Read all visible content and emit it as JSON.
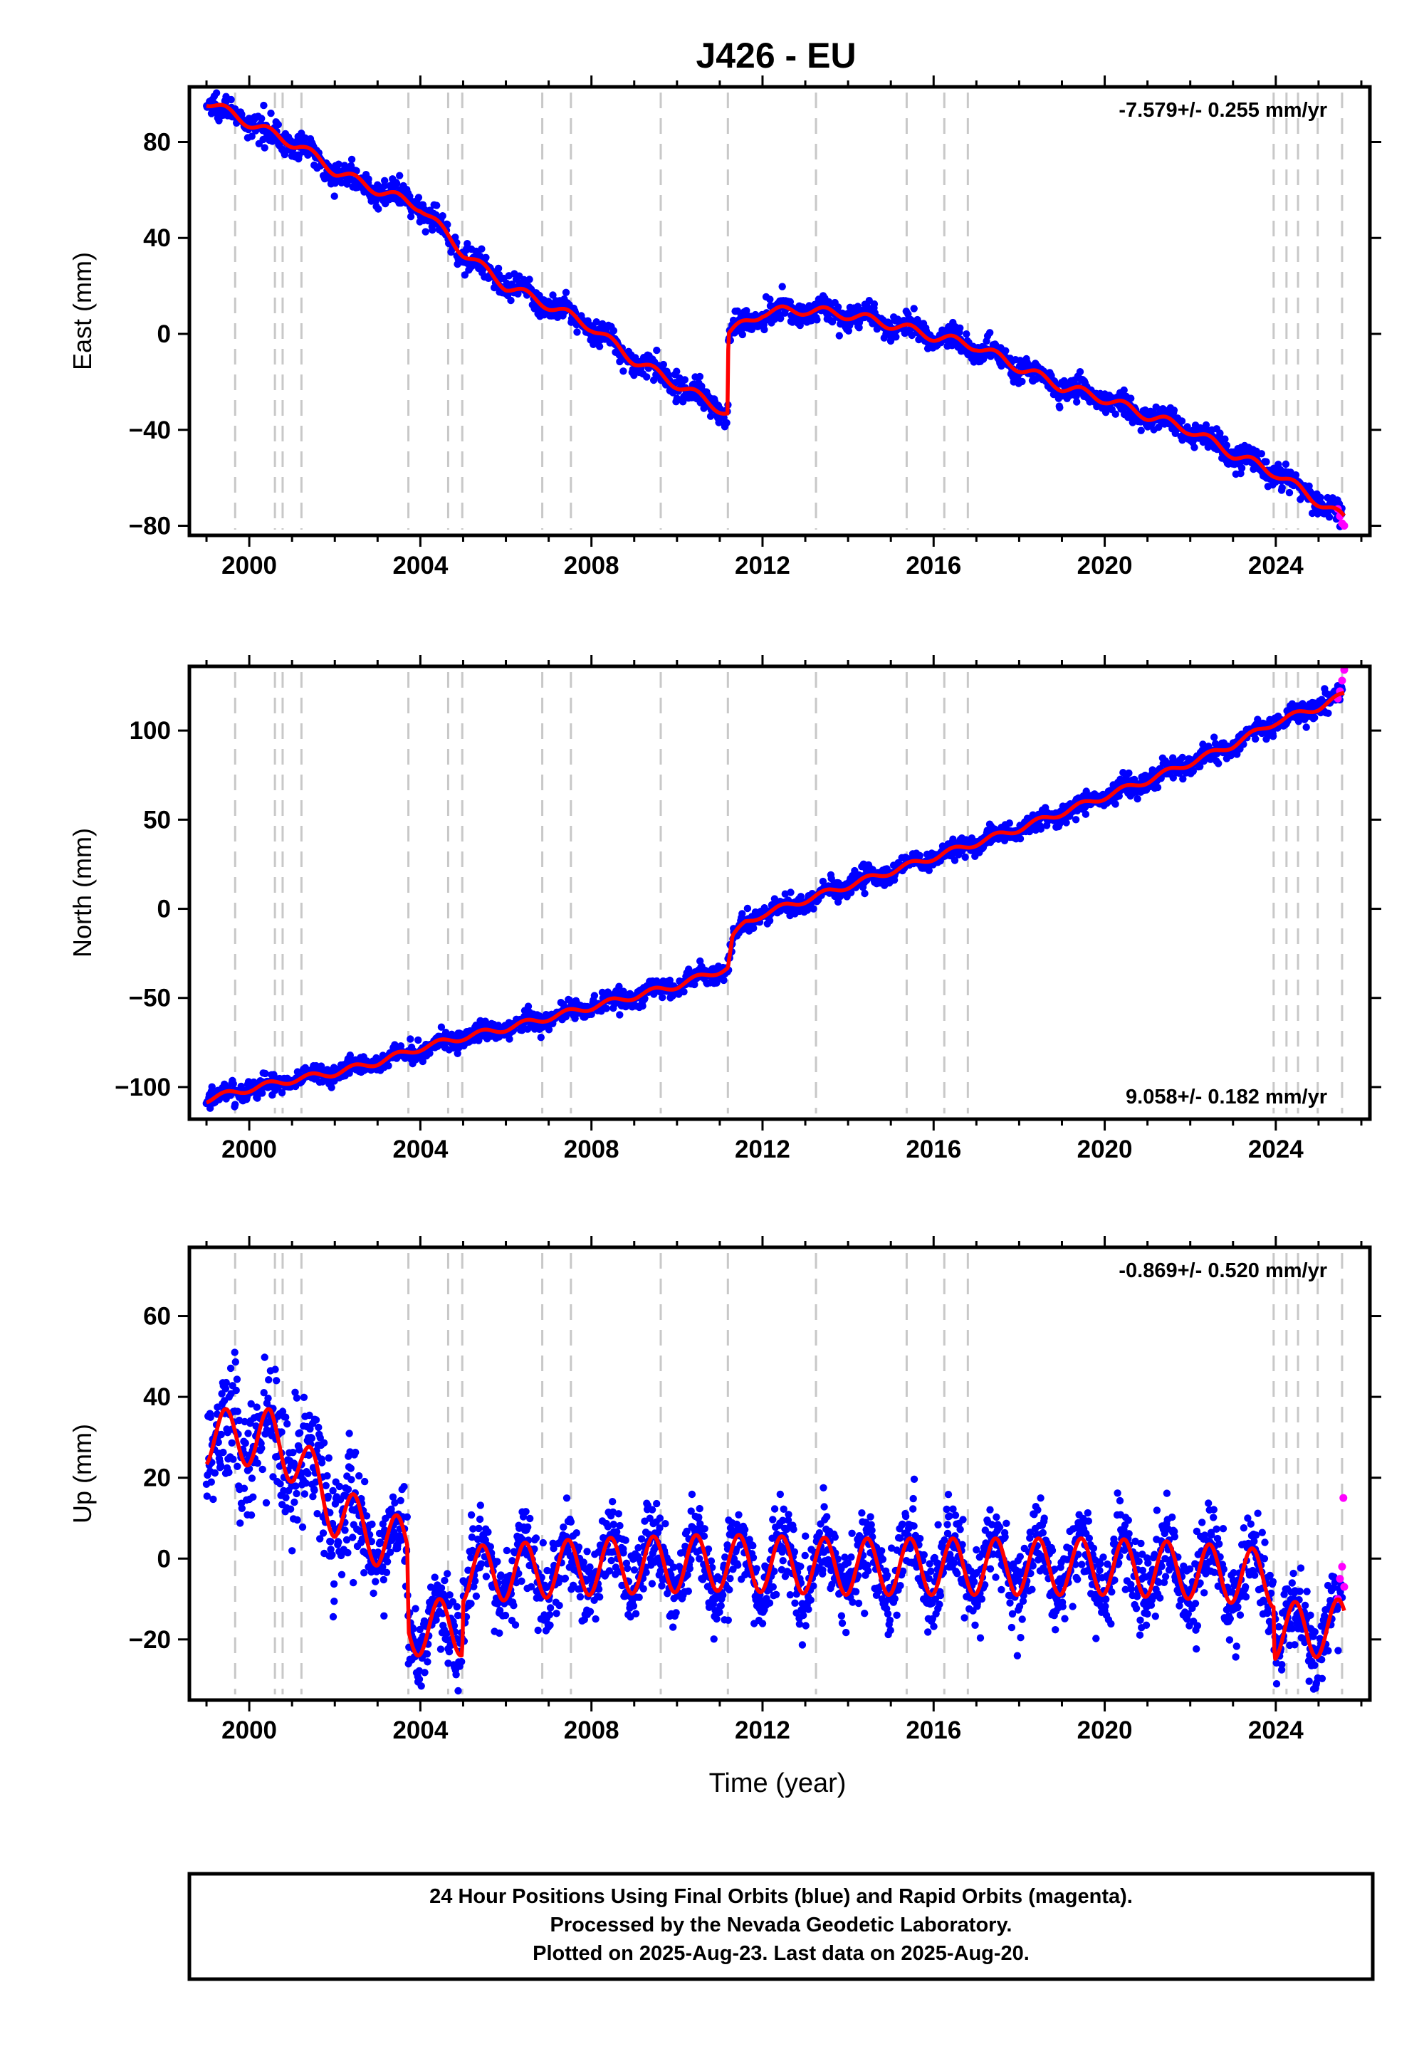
{
  "title": "J426 - EU",
  "xlabel": "Time (year)",
  "xticks": [
    "2000",
    "2004",
    "2008",
    "2012",
    "2016",
    "2020",
    "2024"
  ],
  "footer": {
    "line1": "24 Hour Positions Using Final Orbits (blue) and Rapid Orbits (magenta).",
    "line2": "Processed by the Nevada Geodetic Laboratory.",
    "line3": "Plotted on 2025-Aug-23. Last data on 2025-Aug-20."
  },
  "colors": {
    "final_points": "#0000ff",
    "rapid_points": "#ff00ff",
    "model_line": "#ff0000",
    "event_lines": "#c8c8c8"
  },
  "chart_data": [
    {
      "type": "scatter",
      "ylabel": "East (mm)",
      "rate_label": "-7.579+/- 0.255 mm/yr",
      "rate_position": "top-right",
      "xlim": [
        1998.6,
        2026.2
      ],
      "ylim": [
        -84,
        103
      ],
      "yticks": [
        -80,
        -40,
        0,
        40,
        80
      ],
      "event_lines": [
        1999.67,
        2000.6,
        2000.78,
        2001.22,
        2003.72,
        2004.65,
        2004.98,
        2006.85,
        2007.52,
        2009.62,
        2011.19,
        2013.25,
        2015.37,
        2016.25,
        2016.8,
        2023.95,
        2024.25,
        2024.52,
        2024.98,
        2025.55
      ],
      "model": {
        "knots": [
          [
            1999.0,
            97
          ],
          [
            2000.0,
            88
          ],
          [
            2001.2,
            78
          ],
          [
            2002.0,
            68
          ],
          [
            2003.0,
            60
          ],
          [
            2004.0,
            53
          ],
          [
            2005.0,
            34
          ],
          [
            2006.0,
            20
          ],
          [
            2007.0,
            12
          ],
          [
            2008.0,
            3
          ],
          [
            2009.0,
            -11
          ],
          [
            2010.0,
            -21
          ],
          [
            2011.19,
            -33
          ],
          [
            2011.2,
            0
          ],
          [
            2012.0,
            9
          ],
          [
            2013.0,
            10
          ],
          [
            2014.0,
            8
          ],
          [
            2015.0,
            4
          ],
          [
            2016.0,
            -1
          ],
          [
            2017.0,
            -5
          ],
          [
            2018.0,
            -14
          ],
          [
            2019.0,
            -22
          ],
          [
            2020.0,
            -27
          ],
          [
            2021.0,
            -34
          ],
          [
            2022.0,
            -40
          ],
          [
            2023.0,
            -50
          ],
          [
            2024.0,
            -58
          ],
          [
            2025.0,
            -70
          ],
          [
            2025.6,
            -77
          ]
        ],
        "seasonal_amp": 2.0,
        "noise": 2.6
      },
      "rapid": [
        [
          2025.45,
          -73
        ],
        [
          2025.5,
          -76
        ],
        [
          2025.55,
          -79
        ],
        [
          2025.6,
          -80
        ]
      ]
    },
    {
      "type": "scatter",
      "ylabel": "North (mm)",
      "rate_label": "9.058+/- 0.182 mm/yr",
      "rate_position": "bottom-right",
      "xlim": [
        1998.6,
        2026.2
      ],
      "ylim": [
        -118,
        136
      ],
      "yticks": [
        -100,
        -50,
        0,
        50,
        100
      ],
      "event_lines": [
        1999.67,
        2000.6,
        2000.78,
        2001.22,
        2003.72,
        2004.65,
        2004.98,
        2006.85,
        2007.52,
        2009.62,
        2011.19,
        2013.25,
        2015.37,
        2016.25,
        2016.8,
        2023.95,
        2024.25,
        2024.52,
        2024.98,
        2025.55
      ],
      "model": {
        "knots": [
          [
            1999.0,
            -107
          ],
          [
            2000.0,
            -101
          ],
          [
            2001.0,
            -96
          ],
          [
            2002.0,
            -92
          ],
          [
            2003.0,
            -86
          ],
          [
            2004.0,
            -78
          ],
          [
            2005.0,
            -72
          ],
          [
            2006.0,
            -67
          ],
          [
            2007.0,
            -61
          ],
          [
            2008.0,
            -55
          ],
          [
            2009.0,
            -49
          ],
          [
            2010.0,
            -43
          ],
          [
            2011.19,
            -33
          ],
          [
            2011.3,
            -16
          ],
          [
            2011.6,
            -8
          ],
          [
            2012.0,
            -3
          ],
          [
            2013.0,
            5
          ],
          [
            2014.0,
            13
          ],
          [
            2015.0,
            21
          ],
          [
            2016.0,
            29
          ],
          [
            2017.0,
            37
          ],
          [
            2018.0,
            45
          ],
          [
            2019.0,
            54
          ],
          [
            2020.0,
            63
          ],
          [
            2021.0,
            72
          ],
          [
            2022.0,
            82
          ],
          [
            2023.0,
            92
          ],
          [
            2024.0,
            105
          ],
          [
            2025.0,
            113
          ],
          [
            2025.6,
            120
          ]
        ],
        "seasonal_amp": 1.8,
        "noise": 2.8
      },
      "rapid": [
        [
          2025.45,
          118
        ],
        [
          2025.5,
          122
        ],
        [
          2025.55,
          128
        ],
        [
          2025.6,
          134
        ]
      ]
    },
    {
      "type": "scatter",
      "ylabel": "Up (mm)",
      "rate_label": "-0.869+/- 0.520 mm/yr",
      "rate_position": "top-right",
      "xlim": [
        1998.6,
        2026.2
      ],
      "ylim": [
        -35,
        77
      ],
      "yticks": [
        -20,
        0,
        20,
        40,
        60
      ],
      "event_lines": [
        1999.67,
        2000.6,
        2000.78,
        2001.22,
        2003.72,
        2004.65,
        2004.98,
        2006.85,
        2007.52,
        2009.62,
        2011.19,
        2013.25,
        2015.37,
        2016.25,
        2016.8,
        2023.95,
        2024.25,
        2024.52,
        2024.98,
        2025.55
      ],
      "model": {
        "knots": [
          [
            1999.0,
            30
          ],
          [
            1999.6,
            30
          ],
          [
            2000.5,
            30
          ],
          [
            2001.2,
            24
          ],
          [
            2002.0,
            12
          ],
          [
            2003.0,
            5
          ],
          [
            2003.7,
            3
          ],
          [
            2003.72,
            -17
          ],
          [
            2004.98,
            -17
          ],
          [
            2005.0,
            -4
          ],
          [
            2008.0,
            -2
          ],
          [
            2011.0,
            -1
          ],
          [
            2014.0,
            -2
          ],
          [
            2017.0,
            -2
          ],
          [
            2020.0,
            -2
          ],
          [
            2022.0,
            -3
          ],
          [
            2023.0,
            -4
          ],
          [
            2023.95,
            -5
          ],
          [
            2023.97,
            -18
          ],
          [
            2025.6,
            -17
          ]
        ],
        "seasonal_amp": 7.0,
        "noise": 5.0
      },
      "rapid": [
        [
          2025.45,
          -10
        ],
        [
          2025.5,
          -5
        ],
        [
          2025.55,
          -2
        ],
        [
          2025.58,
          15
        ],
        [
          2025.6,
          -7
        ]
      ]
    }
  ]
}
